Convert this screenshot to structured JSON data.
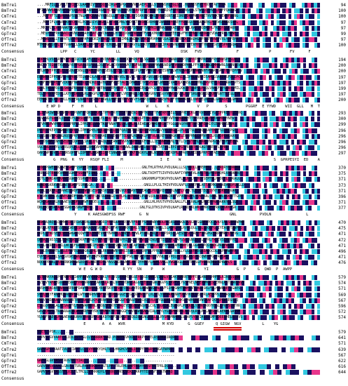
{
  "labels": {
    "names": [
      "BmTre1",
      "BmTre2",
      "CmTre1",
      "CmTre2",
      "GpTre1",
      "GpTre2",
      "OfTre1",
      "OfTre2"
    ],
    "consensus_label": "Consensus"
  },
  "colors": {
    "identical": "#1a1060",
    "high": "#e8368c",
    "similar": "#32c8e0",
    "none": "#ffffff"
  },
  "blocks": [
    {
      "ends": [
        "94",
        "100",
        "100",
        "97",
        "97",
        "99",
        "97",
        "100"
      ],
      "seq": [
        "....MRFILLLVGLTTYIAECLAADRIVTPYDQSSIRGAYSPGCERVNRSAEPCQLLSTRHNSHLTGLSE..HLVNDSFVTYDDTTAVTTGA",
        "MFIWVWWSPANFAFVWFQLAADRLAANPECRGEIYCNGPLLHTVQRSLEPRPVTYNQRYFKHRDSFGPEWSPNSCTLSTWCLQFHVTLEHFPQARAGV",
        "...MRFYFTLLVAVAAPSSRTNLAPPCEAAVYCNGQLLHTVQKESLFYDSKKFVDMKLKHNASGNTAEIDNSFDKFMALHNETRVTRKTVEAMFDRNG",
        "...MRFIFLVAVAAKFVCFEKLPCDSRIYCNGPLLHTVQIMNLYNDSKTFVDMKVRHNVSNAIENYQREFFRSRGVEPRAENEKLFQEWSENAKSVPL",
        "..MRTPLTLVAVAAKFVCAAATPKPACEARIYCNGELLHTVQMAHLFDDSKTFVDMKIRHNASQSVAELEAFRELKAPSHQEKEHLFRIQYSSPAKN",
        "..MEGYYLFPAVAAILVVNQLPQAPCEATLIYCNGSLLHTVQIKNPYNDSKTFVDLKMKNNSSLIEEEFSVFMTEHNGTRPDRDEVDAFFRVLYRNE",
        "..MRWLVALLTLVATLSSYRLHPAFCEDRIYCNGPLLHTVQIMNLYNDSKTFVDKMVKHNVSSAIVEIDRFKKFMADHGEPSLEVVAEFVVLYPFEPA",
        "MTMMRWGSVVLTFTVAALCLSAAPLAPPCPSPIYCHGKLLHTVQIGRVYLDSKTFVDLKLKIPAGYVNDEFNTIFEKMYVTYNETESVSPSPKRSQAL"
      ],
      "cons": "          LPP   C      YC         LL      VQ                  DSK   FVD               F             P        FV      F         E"
    },
    {
      "ends": [
        "194",
        "200",
        "200",
        "197",
        "197",
        "199",
        "197",
        "200"
      ],
      "seq": [
        "EDPTHLVSFIAVPKWFDNIGCVRKAFLQDSLEVDNNDNLLFDNDCWHPRFVLSGAAPLPTTEEVFNNRLRQPIGSYVPEMPRPVGFRYYNWSPESLWLV",
        "ENQTYTEIDPTKVNIVYEHPGRELRSFILLDSQTWGAIVVPFPVKTRGFNRSGPGSAPWVRSNEGMFVQSWDPKHLPPYIQEANGGMHRWNLSGSNSEV",
        "ETLWNNTPPDELEIAGQGPEKNLLWANLHNPGESEDLEEEGLLGYSYIPLPGTPWNQRGGTESNFDLWTNLAAGQHGNWYNHFPGARFGRLYESMIPPAV",
        "EEMWRNIPPEWSFIHRPRRDTELWNKDLAREWNEEHNDVHVELYGVYLYSQIPVGRSVEHERIKAVAWANITLIPALGNRMIEAMGGSARDVGFDLIPC",
        "SDNFPHMLPEEFVIKNRFNWLSVLENDNILAVHLERFVLETAGTLDHWSGIYPIGFPGYLWNYHIVAEQLKWNSLAPIHNLLRVHEVLGTVGRAPSVTS",
        "SDQLTKLRPDIDLSWDAPRERLPEIEWQPLEENLQPRFVSVFVLTGVNWHGEGIVPCGFPVTLTHYWIDLKWIQTTNPSLPSQLVAHCFDPSAAYSMIL",
        "TELYPHVPPEDFLLKFHPDRKELRLMDGPLMTLMPEGAASYLVRSNHLLSGLNPVGRGVLSGYNWWDTYLVLFLFSRGNVDGDLEQMVGNTTCEGLEVR",
        "EEMWRTFLPEDFDLLHDPERLNAIHLLSTRFRRWLLHGESLYRVVPYVFSPQPQVGHGFGSEVMLLFYHNWTRSKLVWDPELNPHALGRLASEVLGMV"
      ],
      "cons": "    E WP D     F   H     L                     W   L    K            V   P       S        PGGRF  E YYWD    WII  GLL   M  TA  GM     N"
    },
    {
      "ends": [
        "293",
        "300",
        "299",
        "296",
        "296",
        "296",
        "296",
        "297"
      ],
      "seq": [
        "TLIPNASWKRDINHSRGVPGNFRYQRSRPQFLTPMVYRYTTEATQWENIQDPTKVLYTFAFRMTEELELLPHEVCRGATKVDGDIYGYEPPRESYLEDHQ",
        "RLVVNGTGVDDLIPNEVFLARSQPPFLIPMLELRSLTYYWQWQVHLHANLSPTPALHALHPELEVWTKRHAQKHTTYFPAESALEPTAGMQIYNEW",
        "TTVHNGPWVMNGRYSQPRFLLIPMIVELVNYTKEFNNAFEQSYLGMLPLREAEAKYWMDNRSVTYGGLQNGYHRVTRFCWFERKDTCEHPERSEWA",
        "DVVEHPKEPTMGWRRSQPPFLIPMVSHELNLIIRHGLLDRFQAIMKTNRDLVRHNKWGRGVYKLIRGDGLPLLLTSLKMDQQDAPEKFFSIDEKPGE",
        "ELLSNGVKPGDWLRQSQPKFLVPMVYRQTRCRAEESLEGQFTEDLPLHDALKLPTFVLDLREYVAHGKWELEHAPHNLCPMVPTELRSPDPEARAAY",
        "DAVDSGWLINHESEQMSQQPFLLSPALIHLYAQLNLEANETVVPVGNHYLRKFTALLIEYNNFWRMLTVTLCVTVTPHLRRRQYWPGSATTDFTEQGA",
        "VGCHNGYPHYLSRRSQPLFLLIPMLRNVQAHPEHVSAEIDYRNAALDALNHSLQEFELKTATYSLEPIVPGTVRSRTFIKAGTPRESYLEPRE",
        "QAKYNPNDVYLESRRSQPHFLIDMVMLMRWPIIKPESNWVAAWSYPKFFNQKYLRHLNSEWVSNEKDMLLPAVDLKEDGSPRPESYAEDAEA"
      ],
      "cons": "       G  PNG  R  YY   RSQP FLI     M                I  E    W                                        S  GPRPESYI  ED    A"
    },
    {
      "ends": [
        "370",
        "375",
        "371",
        "373",
        "371",
        "396",
        "371",
        "377"
      ],
      "seq": [
        "RKNIPGWEKKKAAESGWDFSSRWFIHNG.......................GNLTHLRTHVLPVDLNALLLSLYAQLLRMEPHS...LFRQRYKDRRKA",
        "CRRLSQTEKNKVAAESGWDFSSRWFISNG......................GNLTAIHTTSIVPVDLNAFIYWMLEALAPLTRLPKRRHQHLVAEAHRQ",
        "CQTLRNRQARQKAAESGWEYSSRWFMDG.......................GNGKNMGPTQKVPVDLNAFLWLNALVLHQYSEMTKLHWDLELLQKALG",
        "KQNDLSKRKVHEAAESGWDFSSRWLGA.........................GNGLLPLGLTHIVPVDLNAFLCGNEFALAETAEMKLHSAEADQPSNGLD",
        "AQALLRKRRLPVAAESGWDFSSRWGNSESPIRSVCKGCDDGVQDIGRVEDKEAGFLPQLGHIVPVDLNAFLYANCTLEQRTEQLSYNTRDKWSRKAP",
        "KTCWKSVMLVLAAESGWDFSSRWFINEESLISGLRAGLYIELKLTRERGFLPLASQDLGQLDRNIRLTVPVDLNAFLYQNFDALSQRLTWLRSKATTGDE",
        "WCKDGAKGRLREAAESGWDFSSRWFFHDEG......................GNLLHLHVGTVPVDLNALLFLNLRALAHLNGEPPRAQAKKYGLSGE",
        "QKLEKSKSRFAAESGWDFSSRWFIRNG.......................GNLTGLDTKSIVPVDLNAFLRLNQYRLWRLFHRQFSYRRLRGKKYGR"
      ],
      "cons": "                Y     K AAESGWDFSS RWF      G  N                                   GNL          PVDLN               L"
    },
    {
      "ends": [
        "470",
        "475",
        "471",
        "472",
        "471",
        "496",
        "471",
        "476"
      ],
      "seq": [
        "RRWIAQRQVLQAMWEIRIEGWGDDNLGLWAPDRIYEPRAAYYRSNVEFREEFSPLEWNYRDLPRQASSVAKAIGSGEYGGREVPQCPVAYLNLSDPAWPWE",
        "EYGQLKFRKTSSEALIWDQESHLWKADVYSRLPLMDTFAYYSNKHSDRLSTSPEISPQWHLLSLAQMLPRLRVHSQGLSGLSDQGFGCIYEAGDTAWPPQ",
        "QKPLLTNDSEYISEEGWGRDQQWYYDLYKHEVPFYNPRRLLSNEPLFPWLPTARLYRLPIGLPDRSLLAESDNSLVAEPFSRGPGCDRPAMRPLWPVG",
        "QWWASLNSSIGLTRWEGWSGDKRFWDNIYRSAYEYRPRSVNPHIYGCLPPRWVIREWQRVTEQTAPLFAFGSAQGNGQGFLQPRLFWDEVSEAWPPE",
        "HLGLCANEELRKLLWCSQFGWWFDNQRIFRRRRYYKYPSNNQVPLHCAPIEVAFFKNLAPLEHFQPGAMRNWYDSLGGAPGPQGSWDGPAWPWGY",
        "HTWLEKRNMTLASLEFHFEGWGDGRLLHLRRLRRYYHWNYPASIEWKLAQYQRFLLPPRQSNRSLIPRQLLYLGGVPPDCEDAGQCDLPAPMAWPPA",
        "EVPSSRLPRLSAIGVQWSGWGDRLWPLPRFRRKYYNVKPMNSIPFWLQGYAIVPYRLQVYNLGLVPQLPKYAGGKGSPGCQWDYPGVPAWSAQ",
        "NQQLPPGALLEASRNKWEGWGDDLKLWRRYRDTVYNSSNIPLVWYLAYTDYHFQYLAQHLVPGLVWGLRGLRGGTPESGPVGRNQWGLNPAWPLS"
      ],
      "cons": "                  W E  G W D         R YY  SN    P    W                 YI            G  P     G  QWD  P  AWPP"
    },
    {
      "ends": [
        "579",
        "574",
        "571",
        "569",
        "567",
        "596",
        "572",
        "574"
      ],
      "seq": [
        "VSTRMAYAQLPGTNWPEEIAMFRDWVYRRKELKLYRTDSSKYDHSSGGEYGQGIGWNGVIKRLVIIAKYGNRRTAPFELSANDTLHHFFLRIRGSSSNK",
        "TVIGVYAMAEGVAAVEAREFPRWVRRVSEARRALRGGLVPFKYDWGSAGGEYEQGIGWGNGVPLVRVFVLYGSPNELNFEVWMGKSLEMNLRSTAAKGAVV",
        "LNSHMIAQAEEAAVARERMFDAWYRREPGLYRSTSKVYDSDESSGGEYEQGPGWNNGVALLVFSIMYGNHTDWHGNTLALRSKLFLLHNWRREFLGAES",
        "SVVLWRYFANAMQAADHPGRLWTVRNRHVRDFGKVYDKAVGGEYEGCQGWNGVFLVLVTLYGRWAPRNRFDRAYKHLGELPRLAERPPLYYAASQVLGA",
        "HNLVYHDARAEAANALERTRWYRALRLKPGFRNAAHYDHNGGEYEAGPGWSGVLLVLRHYGGGRSARGKRKVVHAMLRAVWCMAPIKPSPGWSEGSSQ",
        "ESAGQHAALALAESAAVYLFWPWARNHNLKHQGSFEKYEPAGEYEGGQGWNGVTLCVLYGGRQALEGRRPLPDKKRLYAHKSKNYHSGLLPVPSGATHR",
        "GAVIQHPSLTRAARAAQALWVWRREKHYRKTTNMQKYDYDDGGEYSVQGWSGNGVIALEVYLYGSSHMPASLNLVQLRSLPPLAASQWLAEKHLGASSM",
        "YLNLFSAEQLPPGAEAWIGRHVYRKQSPQGQLKDTKKFDSDGGEYEQGIGWGNGVSLLLLRYGMSMNHRQLVSAPSYNVIASSSSMFEDEEEHELRTVVS"
      ],
      "cons": "                    E       A  A   WVR                M KYD      G  GGEY     Q GIGW  NGV         L    YG",
      "motif": {
        "left": 305,
        "width": 40
      }
    },
    {
      "ends": [
        "579",
        "641",
        "571",
        "639",
        "567",
        "622",
        "616",
        "644"
      ],
      "seq": [
        "SSETLSPSK..............................................................",
        "GAPVGLGVVAATLVLVILASTFGLCLVVRRRKYGAD.PCNEEKVKNILTRRPYSTELRSLNGASNQRQ",
        "....................................................................",
        "GAPVGPGVVAATIVLVIIAYTLCLLVYRRKYQHLTL.LHNGHCVEKLIRRPYTELRSFNGATNPRQ",
        "...................................................................",
        "GAPVGLGVVASATAVGTAIYIALCL.........................................",
        "GAEVGWSVIAAGLGAVSLTSRLPAVYRKRPFTGTLPF.TRLEHLGMPTRGHYSSSTRGTPRLDS.....",
        "GAPVGAGVVASSTFLVILYLTMCLIVYRRRQYLVQDDGGNNSCVEKLIRRPYTELRSFSGATNPRQ"
      ],
      "cons": ""
    }
  ]
}
